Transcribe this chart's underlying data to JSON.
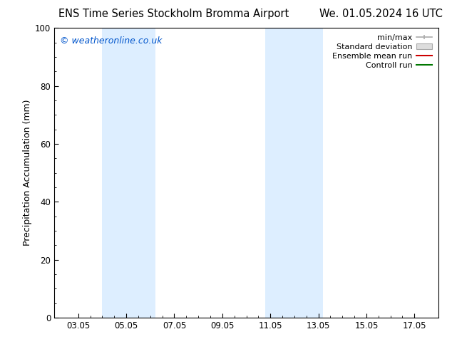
{
  "title_left": "ENS Time Series Stockholm Bromma Airport",
  "title_right": "We. 01.05.2024 16 UTC",
  "ylabel": "Precipitation Accumulation (mm)",
  "ylim": [
    0,
    100
  ],
  "yticks": [
    0,
    20,
    40,
    60,
    80,
    100
  ],
  "xtick_labels": [
    "03.05",
    "05.05",
    "07.05",
    "09.05",
    "11.05",
    "13.05",
    "15.05",
    "17.05"
  ],
  "xtick_positions": [
    3,
    5,
    7,
    9,
    11,
    13,
    15,
    17
  ],
  "xlim": [
    2,
    18
  ],
  "shaded_regions": [
    {
      "xmin": 4.0,
      "xmax": 6.2,
      "color": "#ddeeff"
    },
    {
      "xmin": 10.8,
      "xmax": 13.2,
      "color": "#ddeeff"
    }
  ],
  "watermark_text": "© weatheronline.co.uk",
  "watermark_color": "#0055cc",
  "legend_labels": [
    "min/max",
    "Standard deviation",
    "Ensemble mean run",
    "Controll run"
  ],
  "legend_colors": [
    "#aaaaaa",
    "#cccccc",
    "#cc0000",
    "#007700"
  ],
  "bg_color": "#ffffff",
  "plot_bg_color": "#ffffff",
  "title_fontsize": 10.5,
  "tick_fontsize": 8.5,
  "ylabel_fontsize": 9,
  "legend_fontsize": 8,
  "watermark_fontsize": 9
}
